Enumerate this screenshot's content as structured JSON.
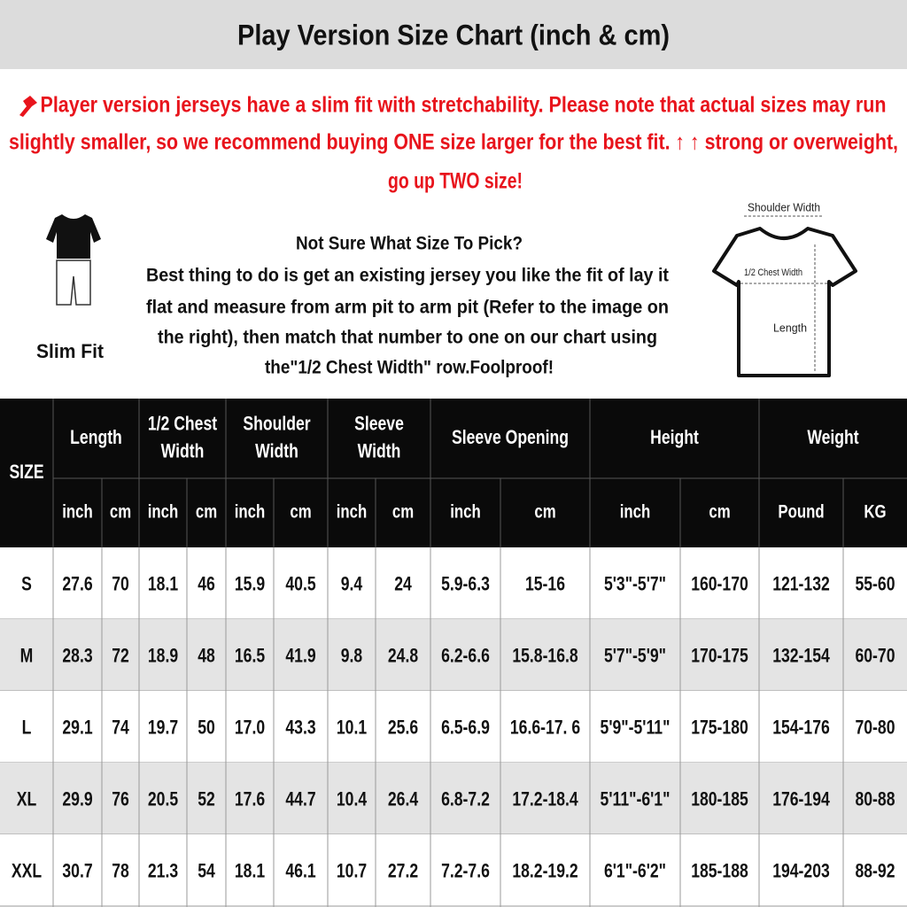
{
  "header": {
    "title": "Play Version Size Chart (inch & cm)"
  },
  "notice": {
    "lines": [
      "Player version jerseys have a slim fit with stretchability. Please note that actual sizes may run",
      "slightly smaller, so we recommend buying ONE size larger for the best fit. ↑ ↑ strong or overweight,",
      "go up TWO size!"
    ]
  },
  "guide": {
    "fit_label": "Slim Fit",
    "heading": "Not Sure What Size To Pick?",
    "lines": [
      "Best thing to do is get an existing jersey you like the fit of lay it",
      "flat and measure from arm pit to arm pit (Refer to the image on",
      "the right), then match that number to one on our chart using",
      "the\"1/2 Chest Width\" row.Foolproof!"
    ]
  },
  "diagram": {
    "shoulder": "Shoulder Width",
    "chest": "1/2 Chest Width",
    "length": "Length"
  },
  "table": {
    "size_header": "SIZE",
    "groups": [
      [
        "Length"
      ],
      [
        "1/2 Chest",
        "Width"
      ],
      [
        "Shoulder",
        "Width"
      ],
      [
        "Sleeve",
        "Width"
      ],
      [
        "Sleeve Opening"
      ],
      [
        "Height"
      ],
      [
        "Weight"
      ]
    ],
    "units": [
      "inch",
      "cm",
      "inch",
      "cm",
      "inch",
      "cm",
      "inch",
      "cm",
      "inch",
      "cm",
      "inch",
      "cm",
      "Pound",
      "KG"
    ],
    "rows": [
      [
        "S",
        "27.6",
        "70",
        "18.1",
        "46",
        "15.9",
        "40.5",
        "9.4",
        "24",
        "5.9-6.3",
        "15-16",
        "5'3\"-5'7\"",
        "160-170",
        "121-132",
        "55-60"
      ],
      [
        "M",
        "28.3",
        "72",
        "18.9",
        "48",
        "16.5",
        "41.9",
        "9.8",
        "24.8",
        "6.2-6.6",
        "15.8-16.8",
        "5'7\"-5'9\"",
        "170-175",
        "132-154",
        "60-70"
      ],
      [
        "L",
        "29.1",
        "74",
        "19.7",
        "50",
        "17.0",
        "43.3",
        "10.1",
        "25.6",
        "6.5-6.9",
        "16.6-17. 6",
        "5'9\"-5'11\"",
        "175-180",
        "154-176",
        "70-80"
      ],
      [
        "XL",
        "29.9",
        "76",
        "20.5",
        "52",
        "17.6",
        "44.7",
        "10.4",
        "26.4",
        "6.8-7.2",
        "17.2-18.4",
        "5'11\"-6'1\"",
        "180-185",
        "176-194",
        "80-88"
      ],
      [
        "XXL",
        "30.7",
        "78",
        "21.3",
        "54",
        "18.1",
        "46.1",
        "10.7",
        "27.2",
        "7.2-7.6",
        "18.2-19.2",
        "6'1\"-6'2\"",
        "185-188",
        "194-203",
        "88-92"
      ]
    ]
  }
}
